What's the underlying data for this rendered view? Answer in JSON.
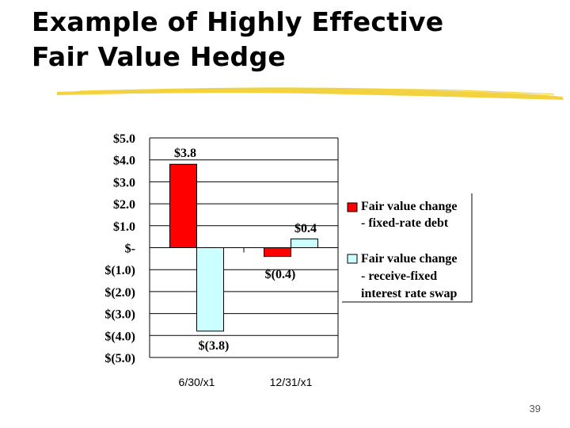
{
  "slide": {
    "title_line1": "Example of Highly Effective",
    "title_line2": "Fair Value Hedge",
    "page_number": "39"
  },
  "colors": {
    "debt": "#ff0000",
    "swap": "#ccffff",
    "brush": "#f2d240"
  },
  "chart_data": {
    "type": "bar",
    "categories": [
      "6/30/x1",
      "12/31/x1"
    ],
    "series": [
      {
        "name": "Fair value change - fixed-rate debt",
        "values": [
          3.8,
          -0.4
        ],
        "color": "#ff0000"
      },
      {
        "name": "Fair value change - receive-fixed interest rate swap",
        "values": [
          -3.8,
          0.4
        ],
        "color": "#ccffff"
      }
    ],
    "data_labels": [
      [
        "$3.8",
        "$(0.4)"
      ],
      [
        "$(3.8)",
        "$0.4"
      ]
    ],
    "y_ticks": [
      5,
      4,
      3,
      2,
      1,
      0,
      -1,
      -2,
      -3,
      -4,
      -5
    ],
    "y_tick_labels": [
      "$5.0",
      "$4.0",
      "$3.0",
      "$2.0",
      "$1.0",
      "$-",
      "$(1.0)",
      "$(2.0)",
      "$(3.0)",
      "$(4.0)",
      "$(5.0)"
    ],
    "ylim": [
      -5,
      5
    ],
    "grid": true,
    "legend": {
      "position": "right",
      "entries": [
        {
          "lines": [
            "Fair value change",
            "- fixed-rate debt"
          ]
        },
        {
          "lines": [
            "Fair value change",
            "- receive-fixed",
            "interest rate swap"
          ]
        }
      ]
    }
  }
}
